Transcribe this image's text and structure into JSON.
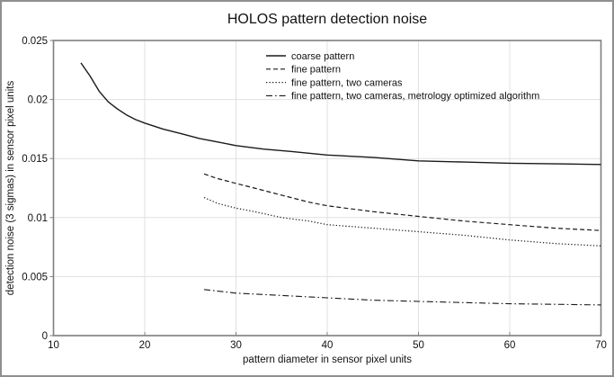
{
  "chart_data": {
    "type": "line",
    "title": "HOLOS pattern detection noise",
    "xlabel": "pattern diameter in sensor pixel units",
    "ylabel": "detection noise (3 sigmas) in sensor pixel units",
    "xlim": [
      10,
      70
    ],
    "ylim": [
      0,
      0.025
    ],
    "x_ticks": [
      10,
      20,
      30,
      40,
      50,
      60,
      70
    ],
    "x_tick_labels": [
      "10",
      "20",
      "30",
      "40",
      "50",
      "60",
      "70"
    ],
    "y_ticks": [
      0,
      0.005,
      0.01,
      0.015,
      0.02,
      0.025
    ],
    "y_tick_labels": [
      "0",
      "0.005",
      "0.01",
      "0.015",
      "0.02",
      "0.025"
    ],
    "grid": true,
    "legend_position": "inside-top-center",
    "legend_has_border": false,
    "series": [
      {
        "name": "coarse pattern",
        "line_style": "solid",
        "color": "#1a1a1a",
        "x": [
          13,
          14,
          15,
          16,
          17,
          18,
          19,
          20,
          22,
          24,
          26,
          28,
          30,
          33,
          36,
          40,
          45,
          50,
          55,
          60,
          65,
          70
        ],
        "y": [
          0.0231,
          0.022,
          0.0207,
          0.0198,
          0.0192,
          0.0187,
          0.0183,
          0.018,
          0.0175,
          0.0171,
          0.0167,
          0.0164,
          0.0161,
          0.0158,
          0.0156,
          0.0153,
          0.0151,
          0.0148,
          0.0147,
          0.0146,
          0.01455,
          0.0145
        ]
      },
      {
        "name": "fine pattern",
        "line_style": "dashed",
        "color": "#1a1a1a",
        "x": [
          26.5,
          28,
          30,
          32,
          35,
          38,
          40,
          45,
          50,
          55,
          60,
          65,
          70
        ],
        "y": [
          0.0137,
          0.0133,
          0.0129,
          0.0125,
          0.0119,
          0.0113,
          0.011,
          0.0105,
          0.0101,
          0.0097,
          0.0094,
          0.0091,
          0.0089
        ]
      },
      {
        "name": "fine pattern, two cameras",
        "line_style": "dotted",
        "color": "#1a1a1a",
        "x": [
          26.5,
          28,
          30,
          32,
          35,
          38,
          40,
          45,
          50,
          55,
          60,
          65,
          70
        ],
        "y": [
          0.0117,
          0.0112,
          0.0108,
          0.0105,
          0.01,
          0.0097,
          0.0094,
          0.0091,
          0.0088,
          0.0085,
          0.0081,
          0.0078,
          0.0076
        ]
      },
      {
        "name": "fine pattern, two cameras, metrology optimized algorithm",
        "line_style": "dashdot",
        "color": "#1a1a1a",
        "x": [
          26.5,
          30,
          35,
          40,
          45,
          50,
          55,
          60,
          65,
          70
        ],
        "y": [
          0.0039,
          0.0036,
          0.0034,
          0.0032,
          0.003,
          0.0029,
          0.0028,
          0.0027,
          0.00265,
          0.0026
        ]
      }
    ],
    "colors": {
      "background": "#ffffff",
      "plot_background": "#ffffff",
      "gridline": "#e0e0e0",
      "plot_border": "#7f7f7f",
      "tick": "#7f7f7f",
      "text": "#111111",
      "line": "#1a1a1a",
      "outer_frame": "#8f8f8f"
    }
  }
}
